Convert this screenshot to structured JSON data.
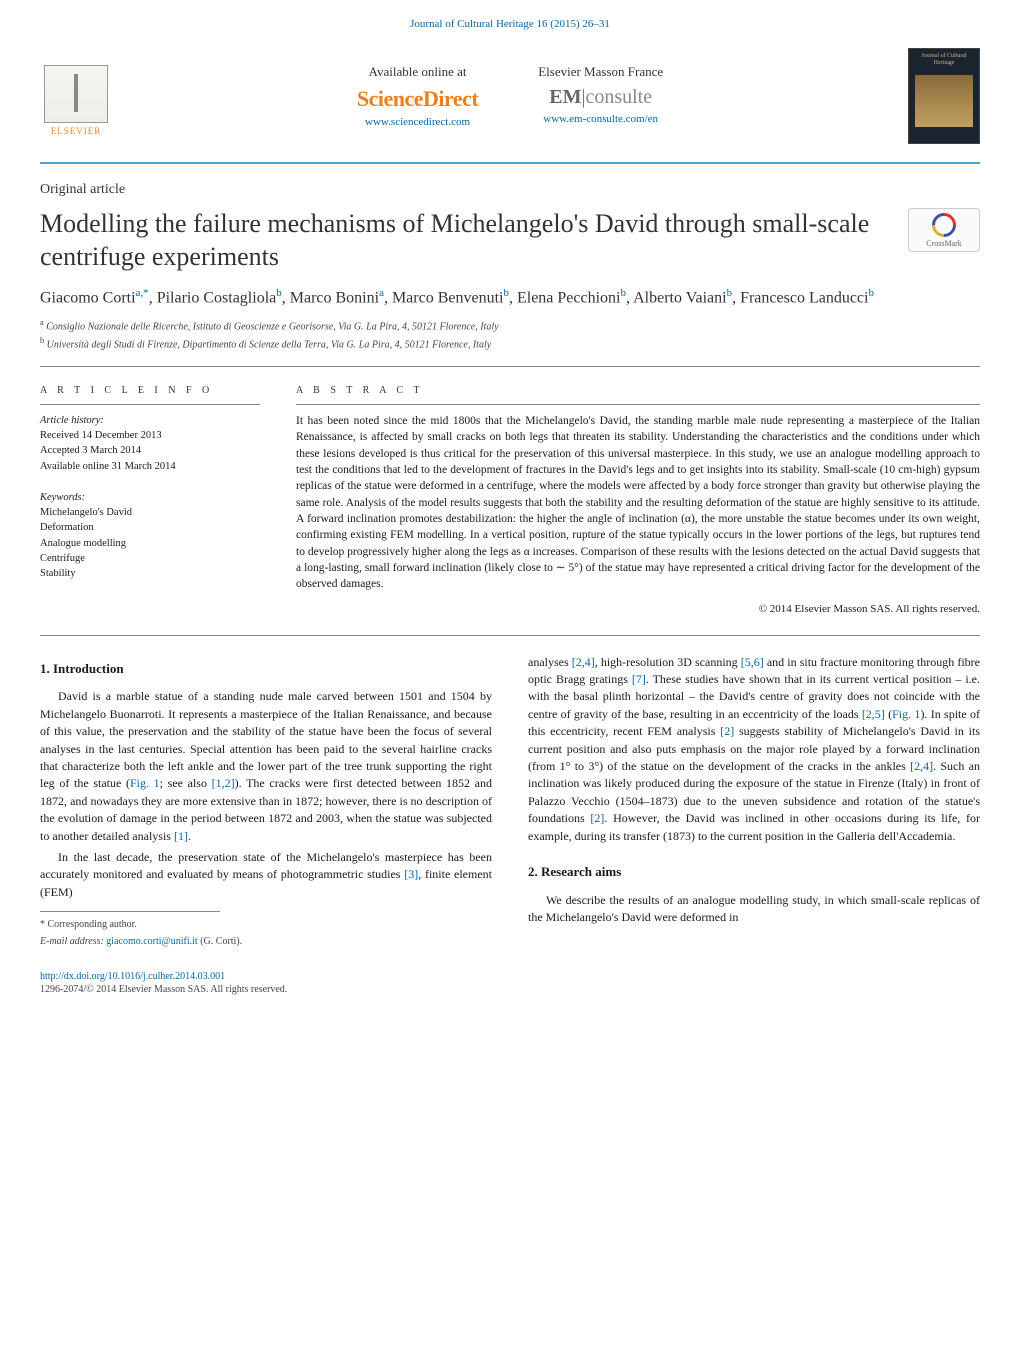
{
  "journal_header": "Journal of Cultural Heritage 16 (2015) 26–31",
  "band": {
    "available": "Available online at",
    "sciencedirect": "ScienceDirect",
    "sd_url": "www.sciencedirect.com",
    "masson": "Elsevier Masson France",
    "em_brand_em": "EM",
    "em_brand_bar": "|",
    "em_brand_consulte": "consulte",
    "em_url": "www.em-consulte.com/en",
    "elsevier_label": "ELSEVIER",
    "journal_thumb_title": "Journal of Cultural Heritage"
  },
  "article_type": "Original article",
  "title": "Modelling the failure mechanisms of Michelangelo's David through small-scale centrifuge experiments",
  "crossmark_label": "CrossMark",
  "authors_html": "Giacomo Corti<sup>a,*</sup>, Pilario Costagliola<sup>b</sup>, Marco Bonini<sup>a</sup>, Marco Benvenuti<sup>b</sup>, Elena Pecchioni<sup>b</sup>, Alberto Vaiani<sup>b</sup>, Francesco Landucci<sup>b</sup>",
  "affiliations": {
    "a": "Consiglio Nazionale delle Ricerche, Istituto di Geoscienze e Georisorse, Via G. La Pira, 4, 50121 Florence, Italy",
    "b": "Università degli Studi di Firenze, Dipartimento di Scienze della Terra, Via G. La Pira, 4, 50121 Florence, Italy"
  },
  "info": {
    "heading": "A R T I C L E   I N F O",
    "history_label": "Article history:",
    "received": "Received 14 December 2013",
    "accepted": "Accepted 3 March 2014",
    "online": "Available online 31 March 2014",
    "keywords_label": "Keywords:",
    "keywords": [
      "Michelangelo's David",
      "Deformation",
      "Analogue modelling",
      "Centrifuge",
      "Stability"
    ]
  },
  "abstract": {
    "heading": "A B S T R A C T",
    "body": "It has been noted since the mid 1800s that the Michelangelo's David, the standing marble male nude representing a masterpiece of the Italian Renaissance, is affected by small cracks on both legs that threaten its stability. Understanding the characteristics and the conditions under which these lesions developed is thus critical for the preservation of this universal masterpiece. In this study, we use an analogue modelling approach to test the conditions that led to the development of fractures in the David's legs and to get insights into its stability. Small-scale (10 cm-high) gypsum replicas of the statue were deformed in a centrifuge, where the models were affected by a body force stronger than gravity but otherwise playing the same role. Analysis of the model results suggests that both the stability and the resulting deformation of the statue are highly sensitive to its attitude. A forward inclination promotes destabilization: the higher the angle of inclination (α), the more unstable the statue becomes under its own weight, confirming existing FEM modelling. In a vertical position, rupture of the statue typically occurs in the lower portions of the legs, but ruptures tend to develop progressively higher along the legs as α increases. Comparison of these results with the lesions detected on the actual David suggests that a long-lasting, small forward inclination (likely close to ∼ 5°) of the statue may have represented a critical driving factor for the development of the observed damages.",
    "copyright": "© 2014 Elsevier Masson SAS. All rights reserved."
  },
  "sections": {
    "intro_heading": "1. Introduction",
    "intro_p1": "David is a marble statue of a standing nude male carved between 1501 and 1504 by Michelangelo Buonarroti. It represents a masterpiece of the Italian Renaissance, and because of this value, the preservation and the stability of the statue have been the focus of several analyses in the last centuries. Special attention has been paid to the several hairline cracks that characterize both the left ankle and the lower part of the tree trunk supporting the right leg of the statue (",
    "intro_p1_ref1": "Fig. 1",
    "intro_p1_mid": "; see also ",
    "intro_p1_ref2": "[1,2]",
    "intro_p1_after": "). The cracks were first detected between 1852 and 1872, and nowadays they are more extensive than in 1872; however, there is no description of the evolution of damage in the period between 1872 and 2003, when the statue was subjected to another detailed analysis ",
    "intro_p1_ref3": "[1]",
    "intro_p1_end": ".",
    "intro_p2": "In the last decade, the preservation state of the Michelangelo's masterpiece has been accurately monitored and evaluated by means of photogrammetric studies ",
    "intro_p2_ref1": "[3]",
    "intro_p2_mid": ", finite element (FEM)",
    "col2_p1_a": "analyses ",
    "col2_p1_ref1": "[2,4]",
    "col2_p1_b": ", high-resolution 3D scanning ",
    "col2_p1_ref2": "[5,6]",
    "col2_p1_c": " and in situ fracture monitoring through fibre optic Bragg gratings ",
    "col2_p1_ref3": "[7]",
    "col2_p1_d": ". These studies have shown that in its current vertical position – i.e. with the basal plinth horizontal – the David's centre of gravity does not coincide with the centre of gravity of the base, resulting in an eccentricity of the loads ",
    "col2_p1_ref4": "[2,5]",
    "col2_p1_e": " (",
    "col2_p1_ref5": "Fig. 1",
    "col2_p1_f": "). In spite of this eccentricity, recent FEM analysis ",
    "col2_p1_ref6": "[2]",
    "col2_p1_g": " suggests stability of Michelangelo's David in its current position and also puts emphasis on the major role played by a forward inclination (from 1° to 3°) of the statue on the development of the cracks in the ankles ",
    "col2_p1_ref7": "[2,4]",
    "col2_p1_h": ". Such an inclination was likely produced during the exposure of the statue in Firenze (Italy) in front of Palazzo Vecchio (1504–1873) due to the uneven subsidence and rotation of the statue's foundations ",
    "col2_p1_ref8": "[2]",
    "col2_p1_i": ". However, the David was inclined in other occasions during its life, for example, during its transfer (1873) to the current position in the Galleria dell'Accademia.",
    "aims_heading": "2. Research aims",
    "aims_p1": "We describe the results of an analogue modelling study, in which small-scale replicas of the Michelangelo's David were deformed in"
  },
  "footer": {
    "corr": "* Corresponding author.",
    "email_label": "E-mail address:",
    "email": "giacomo.corti@unifi.it",
    "email_who": "(G. Corti).",
    "doi": "http://dx.doi.org/10.1016/j.culher.2014.03.001",
    "issn": "1296-2074/© 2014 Elsevier Masson SAS. All rights reserved."
  },
  "colors": {
    "link": "#0066aa",
    "accent": "#ee7f1a",
    "rule": "#55a0c8"
  }
}
